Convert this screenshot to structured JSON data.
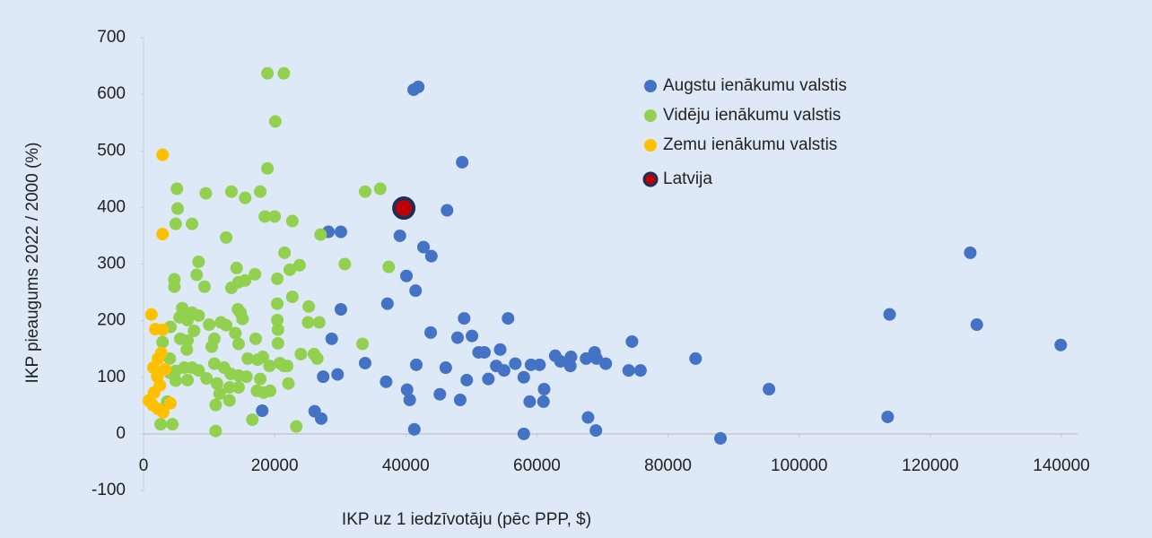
{
  "chart_data": {
    "type": "scatter",
    "xlabel": "IKP uz 1 iedzīvotāju (pēc PPP, $)",
    "ylabel": "IKP pieaugums 2022 / 2000 (%)",
    "xlim": [
      0,
      140000
    ],
    "xticks": [
      0,
      20000,
      40000,
      60000,
      80000,
      100000,
      120000,
      140000
    ],
    "ylim": [
      -100,
      700
    ],
    "yticks": [
      -100,
      0,
      100,
      200,
      300,
      400,
      500,
      600,
      700
    ],
    "legend": "upper right",
    "series": [
      {
        "name": "Augstu ienākumu valstis",
        "color": "#4472c4",
        "x": [
          41200,
          41900,
          48600,
          46300,
          39100,
          42700,
          43900,
          40100,
          41500,
          28200,
          30100,
          37200,
          30100,
          28700,
          29600,
          27400,
          33800,
          37000,
          40200,
          40600,
          41600,
          41300,
          26100,
          27100,
          18100,
          43800,
          48900,
          47900,
          50100,
          46100,
          45200,
          48300,
          49300,
          51100,
          52000,
          54400,
          55600,
          53800,
          55000,
          56700,
          52600,
          58000,
          59100,
          60400,
          58900,
          61100,
          61000,
          58000,
          62800,
          63600,
          65200,
          65100,
          67500,
          68800,
          69100,
          70500,
          67800,
          69000,
          74000,
          75800,
          74500,
          84200,
          88000,
          95400,
          113500,
          113800,
          126100,
          127100,
          139900
        ],
        "values": [
          608,
          613,
          480,
          395,
          350,
          330,
          314,
          279,
          253,
          357,
          357,
          230,
          220,
          168,
          105,
          101,
          125,
          92,
          78,
          60,
          122,
          8,
          40,
          27,
          41,
          179,
          204,
          170,
          173,
          117,
          70,
          60,
          95,
          144,
          144,
          149,
          204,
          120,
          112,
          124,
          97,
          100,
          122,
          122,
          57,
          79,
          57,
          0,
          138,
          128,
          136,
          120,
          133,
          144,
          133,
          124,
          29,
          6,
          112,
          112,
          163,
          133,
          -8,
          79,
          30,
          211,
          320,
          193,
          157
        ]
      },
      {
        "name": "Vidēju ienākumu valstis",
        "color": "#92d050",
        "x": [
          18900,
          21400,
          20100,
          18900,
          5100,
          9500,
          13400,
          17800,
          15500,
          5200,
          33800,
          36100,
          4900,
          7400,
          18500,
          20000,
          22700,
          12600,
          27000,
          21500,
          30700,
          37400,
          8400,
          23800,
          22300,
          14200,
          4700,
          4700,
          8100,
          17000,
          15500,
          14500,
          13400,
          9300,
          20400,
          20400,
          22700,
          25200,
          14400,
          15100,
          14800,
          7400,
          5900,
          4100,
          2900,
          5500,
          10000,
          11800,
          12600,
          6700,
          8400,
          5600,
          6700,
          7700,
          10800,
          14000,
          14500,
          20400,
          20500,
          25100,
          26800,
          17100,
          20500,
          26000,
          26500,
          24000,
          33400,
          10400,
          6600,
          4000,
          15900,
          17400,
          18200,
          19200,
          20800,
          21400,
          6200,
          7400,
          10800,
          12300,
          13300,
          14500,
          4000,
          4900,
          8400,
          15700,
          17800,
          21900,
          22100,
          9600,
          11200,
          13100,
          14500,
          4900,
          6700,
          17300,
          18300,
          19300,
          11600,
          13100,
          3600,
          2600,
          4400,
          11000,
          16600,
          11000,
          23300
        ],
        "values": [
          637,
          637,
          552,
          469,
          433,
          425,
          428,
          428,
          417,
          398,
          428,
          433,
          371,
          371,
          384,
          384,
          376,
          347,
          352,
          320,
          300,
          295,
          304,
          298,
          290,
          293,
          273,
          260,
          281,
          282,
          271,
          268,
          258,
          260,
          274,
          230,
          242,
          225,
          220,
          203,
          214,
          214,
          222,
          189,
          162,
          206,
          193,
          197,
          192,
          201,
          209,
          168,
          165,
          182,
          168,
          178,
          159,
          201,
          184,
          197,
          197,
          168,
          160,
          141,
          133,
          141,
          159,
          154,
          149,
          133,
          133,
          131,
          136,
          120,
          125,
          120,
          117,
          117,
          124,
          117,
          106,
          103,
          108,
          111,
          112,
          101,
          97,
          120,
          89,
          98,
          89,
          82,
          82,
          94,
          95,
          76,
          73,
          76,
          71,
          59,
          57,
          17,
          17,
          51,
          25,
          5,
          13
        ]
      },
      {
        "name": "Zemu ienākumu valstis",
        "color": "#ffc000",
        "x": [
          2900,
          2900,
          1200,
          1800,
          2900,
          2200,
          2700,
          1500,
          2100,
          1600,
          800,
          1400,
          2200,
          4100,
          3300,
          2500,
          3000
        ],
        "values": [
          493,
          353,
          211,
          185,
          184,
          133,
          143,
          117,
          101,
          73,
          59,
          51,
          44,
          54,
          114,
          86,
          38
        ]
      },
      {
        "name": "Latvija",
        "color": "#c00000",
        "edgecolor": "#1f2d5c",
        "x": [
          39700
        ],
        "values": [
          399
        ]
      }
    ]
  }
}
